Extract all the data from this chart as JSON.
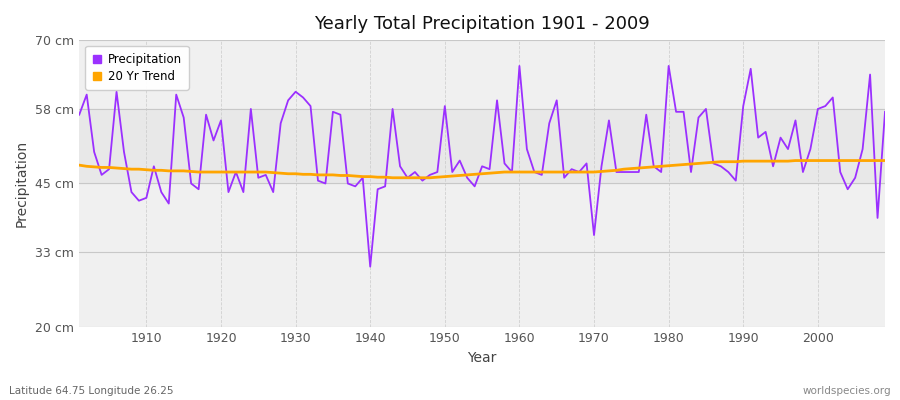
{
  "title": "Yearly Total Precipitation 1901 - 2009",
  "xlabel": "Year",
  "ylabel": "Precipitation",
  "bottom_left_label": "Latitude 64.75 Longitude 26.25",
  "bottom_right_label": "worldspecies.org",
  "yticks": [
    20,
    33,
    45,
    58,
    70
  ],
  "ytick_labels": [
    "20 cm",
    "33 cm",
    "45 cm",
    "58 cm",
    "70 cm"
  ],
  "xticks": [
    1910,
    1920,
    1930,
    1940,
    1950,
    1960,
    1970,
    1980,
    1990,
    2000
  ],
  "xlim": [
    1901,
    2009
  ],
  "ylim": [
    20,
    70
  ],
  "precip_color": "#9B30FF",
  "trend_color": "#FFA500",
  "fig_bg": "#FFFFFF",
  "ax_bg": "#F0F0F0",
  "years": [
    1901,
    1902,
    1903,
    1904,
    1905,
    1906,
    1907,
    1908,
    1909,
    1910,
    1911,
    1912,
    1913,
    1914,
    1915,
    1916,
    1917,
    1918,
    1919,
    1920,
    1921,
    1922,
    1923,
    1924,
    1925,
    1926,
    1927,
    1928,
    1929,
    1930,
    1931,
    1932,
    1933,
    1934,
    1935,
    1936,
    1937,
    1938,
    1939,
    1940,
    1941,
    1942,
    1943,
    1944,
    1945,
    1946,
    1947,
    1948,
    1949,
    1950,
    1951,
    1952,
    1953,
    1954,
    1955,
    1956,
    1957,
    1958,
    1959,
    1960,
    1961,
    1962,
    1963,
    1964,
    1965,
    1966,
    1967,
    1968,
    1969,
    1970,
    1971,
    1972,
    1973,
    1974,
    1975,
    1976,
    1977,
    1978,
    1979,
    1980,
    1981,
    1982,
    1983,
    1984,
    1985,
    1986,
    1987,
    1988,
    1989,
    1990,
    1991,
    1992,
    1993,
    1994,
    1995,
    1996,
    1997,
    1998,
    1999,
    2000,
    2001,
    2002,
    2003,
    2004,
    2005,
    2006,
    2007,
    2008,
    2009
  ],
  "precip": [
    57.0,
    60.5,
    50.5,
    46.5,
    47.5,
    61.0,
    50.5,
    43.5,
    42.0,
    42.5,
    48.0,
    43.5,
    41.5,
    60.5,
    56.5,
    45.0,
    44.0,
    57.0,
    52.5,
    56.0,
    43.5,
    47.0,
    43.5,
    58.0,
    46.0,
    46.5,
    43.5,
    55.5,
    59.5,
    61.0,
    60.0,
    58.5,
    45.5,
    45.0,
    57.5,
    57.0,
    45.0,
    44.5,
    46.0,
    30.5,
    44.0,
    44.5,
    58.0,
    48.0,
    46.0,
    47.0,
    45.5,
    46.5,
    47.0,
    58.5,
    47.0,
    49.0,
    46.0,
    44.5,
    48.0,
    47.5,
    59.5,
    48.5,
    47.0,
    65.5,
    51.0,
    47.0,
    46.5,
    55.5,
    59.5,
    46.0,
    47.5,
    47.0,
    48.5,
    36.0,
    48.0,
    56.0,
    47.0,
    47.0,
    47.0,
    47.0,
    57.0,
    48.0,
    47.0,
    65.5,
    57.5,
    57.5,
    47.0,
    56.5,
    58.0,
    48.5,
    48.0,
    47.0,
    45.5,
    58.5,
    65.0,
    53.0,
    54.0,
    48.0,
    53.0,
    51.0,
    56.0,
    47.0,
    51.0,
    58.0,
    58.5,
    60.0,
    47.0,
    44.0,
    46.0,
    51.0,
    64.0,
    39.0,
    57.5
  ],
  "trend": [
    48.2,
    48.0,
    47.9,
    47.8,
    47.8,
    47.7,
    47.6,
    47.5,
    47.5,
    47.4,
    47.3,
    47.3,
    47.2,
    47.2,
    47.2,
    47.1,
    47.0,
    47.0,
    47.0,
    47.0,
    47.0,
    47.0,
    47.0,
    47.0,
    47.0,
    47.0,
    46.9,
    46.8,
    46.7,
    46.7,
    46.6,
    46.6,
    46.5,
    46.5,
    46.5,
    46.4,
    46.4,
    46.3,
    46.2,
    46.2,
    46.1,
    46.1,
    46.0,
    46.0,
    46.0,
    46.0,
    46.0,
    46.0,
    46.1,
    46.2,
    46.3,
    46.4,
    46.5,
    46.6,
    46.7,
    46.8,
    46.9,
    47.0,
    47.0,
    47.0,
    47.0,
    47.0,
    47.0,
    47.0,
    47.0,
    47.0,
    47.0,
    47.0,
    47.0,
    47.0,
    47.1,
    47.2,
    47.3,
    47.5,
    47.6,
    47.7,
    47.8,
    47.9,
    48.0,
    48.1,
    48.2,
    48.3,
    48.4,
    48.5,
    48.6,
    48.7,
    48.8,
    48.8,
    48.8,
    48.9,
    48.9,
    48.9,
    48.9,
    48.9,
    48.9,
    48.9,
    49.0,
    49.0,
    49.0,
    49.0,
    49.0,
    49.0,
    49.0,
    49.0,
    49.0,
    49.0,
    49.0,
    49.0,
    49.0
  ]
}
